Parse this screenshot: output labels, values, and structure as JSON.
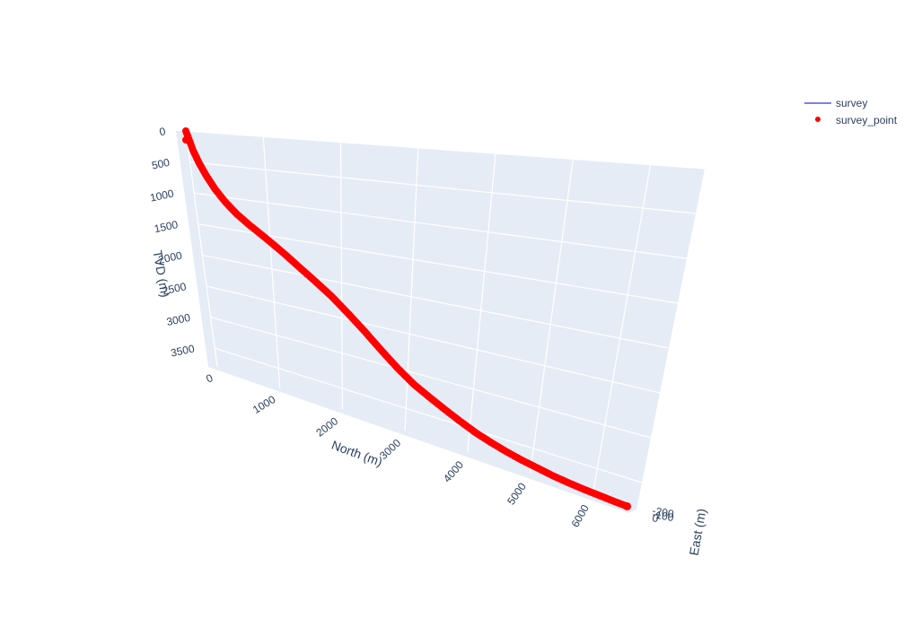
{
  "chart_data": {
    "type": "scatter3d",
    "xlabel": "North (m)",
    "ylabel": "East (m)",
    "zlabel": "TVD (m)",
    "x_ticks": [
      "1000",
      "2000",
      "3000",
      "4000",
      "5000",
      "6000"
    ],
    "y_ticks": [
      "-200",
      "-100",
      "0"
    ],
    "z_ticks": [
      "0",
      "500",
      "1000",
      "1500",
      "2000",
      "2500",
      "3000",
      "3500"
    ],
    "x_range": [
      0,
      6700
    ],
    "z_range": [
      0,
      3800
    ],
    "legend": {
      "position": "top-right"
    },
    "series": [
      {
        "name": "survey",
        "mode": "lines",
        "color": "#7f7fe0"
      },
      {
        "name": "survey_point",
        "mode": "markers",
        "color": "#ff0000",
        "north": [
          0,
          20,
          60,
          120,
          200,
          300,
          420,
          560,
          720,
          880,
          1040,
          1200,
          1380,
          1600,
          1850,
          2100,
          2350,
          2600,
          2850,
          3100,
          3350,
          3600,
          3850,
          4100,
          4350,
          4600,
          4850,
          5100,
          5350,
          5600,
          5850,
          6100,
          6350,
          6550
        ],
        "tvd": [
          0,
          100,
          300,
          500,
          700,
          900,
          1080,
          1240,
          1380,
          1500,
          1620,
          1740,
          1880,
          2040,
          2220,
          2420,
          2620,
          2820,
          3000,
          3150,
          3260,
          3360,
          3450,
          3530,
          3590,
          3640,
          3680,
          3710,
          3740,
          3760,
          3775,
          3785,
          3795,
          3800
        ]
      }
    ]
  },
  "legend": {
    "survey_label": "survey",
    "survey_point_label": "survey_point"
  }
}
